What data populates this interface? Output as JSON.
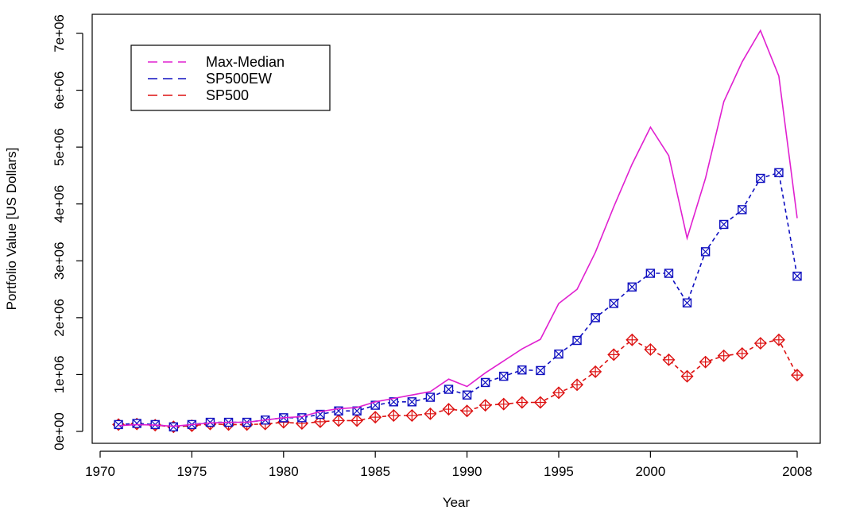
{
  "chart_data": {
    "type": "line",
    "title": "",
    "xlabel": "Year",
    "ylabel": "Portfolio Value [US Dollars]",
    "xlim": [
      1970,
      2009
    ],
    "ylim": [
      0,
      7000000
    ],
    "x_ticks": [
      1970,
      1975,
      1980,
      1985,
      1990,
      1995,
      2000,
      2008
    ],
    "x_tick_labels": [
      "1970",
      "1975",
      "1980",
      "1985",
      "1990",
      "1995",
      "2000",
      "2008"
    ],
    "y_ticks": [
      0,
      1000000,
      2000000,
      3000000,
      4000000,
      5000000,
      6000000,
      7000000
    ],
    "y_tick_labels": [
      "0e+00",
      "1e+06",
      "2e+06",
      "3e+06",
      "4e+06",
      "5e+06",
      "6e+06",
      "7e+06"
    ],
    "grid": false,
    "legend_position": "top-left",
    "x": [
      1971,
      1972,
      1973,
      1974,
      1975,
      1976,
      1977,
      1978,
      1979,
      1980,
      1981,
      1982,
      1983,
      1984,
      1985,
      1986,
      1987,
      1988,
      1989,
      1990,
      1991,
      1992,
      1993,
      1994,
      1995,
      1996,
      1997,
      1998,
      1999,
      2000,
      2001,
      2002,
      2003,
      2004,
      2005,
      2006,
      2007,
      2008
    ],
    "series": [
      {
        "name": "Max-Median",
        "color": "#e020d0",
        "line": "solid",
        "marker": "none",
        "values": [
          100000,
          120000,
          110000,
          90000,
          120000,
          150000,
          160000,
          160000,
          200000,
          240000,
          260000,
          350000,
          400000,
          420000,
          520000,
          580000,
          640000,
          700000,
          920000,
          790000,
          1030000,
          1240000,
          1450000,
          1620000,
          2250000,
          2500000,
          3150000,
          3950000,
          4700000,
          5350000,
          4850000,
          3400000,
          4450000,
          5800000,
          6500000,
          7050000,
          6250000,
          3750000
        ]
      },
      {
        "name": "SP500EW",
        "color": "#1010c0",
        "line": "dashed",
        "marker": "square-x",
        "values": [
          120000,
          140000,
          120000,
          80000,
          120000,
          160000,
          160000,
          160000,
          200000,
          240000,
          240000,
          300000,
          360000,
          360000,
          460000,
          520000,
          520000,
          600000,
          740000,
          640000,
          860000,
          970000,
          1080000,
          1070000,
          1360000,
          1600000,
          2000000,
          2250000,
          2540000,
          2780000,
          2780000,
          2260000,
          3160000,
          3640000,
          3900000,
          4450000,
          4550000,
          2730000
        ]
      },
      {
        "name": "SP500",
        "color": "#dd1010",
        "line": "dashed",
        "marker": "diamond-plus",
        "values": [
          120000,
          130000,
          110000,
          80000,
          100000,
          130000,
          120000,
          120000,
          130000,
          160000,
          140000,
          170000,
          190000,
          190000,
          250000,
          280000,
          280000,
          310000,
          390000,
          360000,
          460000,
          480000,
          510000,
          510000,
          680000,
          820000,
          1050000,
          1350000,
          1610000,
          1440000,
          1260000,
          970000,
          1220000,
          1330000,
          1370000,
          1550000,
          1610000,
          990000
        ]
      }
    ]
  }
}
